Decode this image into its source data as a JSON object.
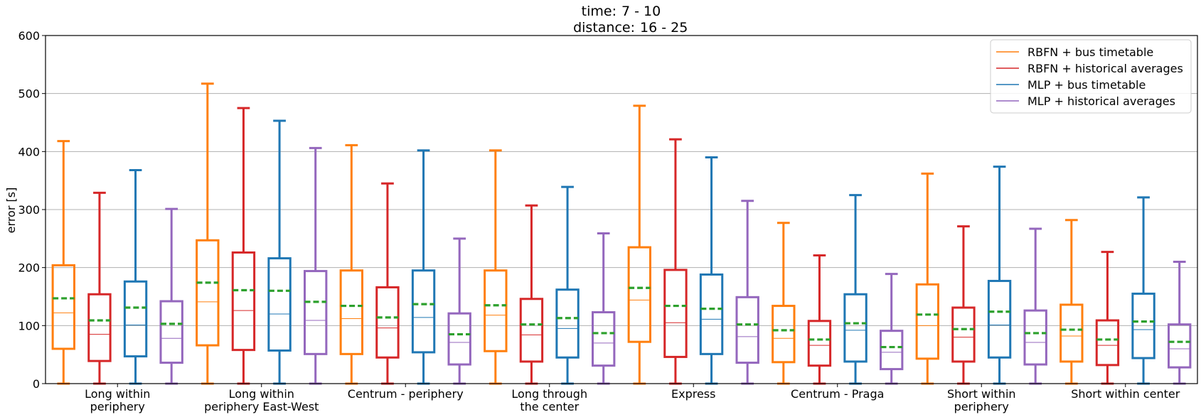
{
  "chart_data": {
    "type": "box",
    "title_line1_label": "time:",
    "title_line1_value": "7 - 10",
    "title_line2_label": "distance:",
    "title_line2_value": "16 - 25",
    "ylabel": "error [s]",
    "xlabel": "",
    "ylim": [
      0,
      600
    ],
    "yticks": [
      0,
      100,
      200,
      300,
      400,
      500,
      600
    ],
    "grid": "horizontal",
    "legend_position": "top-right",
    "categories": [
      [
        "Long within",
        "periphery"
      ],
      [
        "Long within",
        "periphery East-West"
      ],
      [
        "Centrum - periphery"
      ],
      [
        "Long through",
        "the center"
      ],
      [
        "Express"
      ],
      [
        "Centrum - Praga"
      ],
      [
        "Short within",
        "periphery"
      ],
      [
        "Short within center"
      ]
    ],
    "mean_marker_color": "#2ca02c",
    "series": [
      {
        "name": "RBFN + bus timetable",
        "color": "#ff7f0e",
        "boxes": [
          {
            "whislo": 0,
            "q1": 60,
            "med": 122,
            "mean": 147,
            "q3": 204,
            "whishi": 418
          },
          {
            "whislo": 0,
            "q1": 66,
            "med": 141,
            "mean": 174,
            "q3": 247,
            "whishi": 517
          },
          {
            "whislo": 0,
            "q1": 51,
            "med": 112,
            "mean": 134,
            "q3": 195,
            "whishi": 411
          },
          {
            "whislo": 0,
            "q1": 56,
            "med": 118,
            "mean": 135,
            "q3": 195,
            "whishi": 402
          },
          {
            "whislo": 0,
            "q1": 72,
            "med": 144,
            "mean": 165,
            "q3": 235,
            "whishi": 479
          },
          {
            "whislo": 0,
            "q1": 37,
            "med": 78,
            "mean": 92,
            "q3": 134,
            "whishi": 277
          },
          {
            "whislo": 0,
            "q1": 43,
            "med": 100,
            "mean": 119,
            "q3": 171,
            "whishi": 362
          },
          {
            "whislo": 0,
            "q1": 38,
            "med": 82,
            "mean": 93,
            "q3": 136,
            "whishi": 282
          }
        ]
      },
      {
        "name": "RBFN + historical averages",
        "color": "#d62728",
        "boxes": [
          {
            "whislo": 0,
            "q1": 39,
            "med": 85,
            "mean": 109,
            "q3": 154,
            "whishi": 329
          },
          {
            "whislo": 0,
            "q1": 58,
            "med": 126,
            "mean": 161,
            "q3": 226,
            "whishi": 475
          },
          {
            "whislo": 0,
            "q1": 45,
            "med": 96,
            "mean": 114,
            "q3": 166,
            "whishi": 345
          },
          {
            "whislo": 0,
            "q1": 38,
            "med": 84,
            "mean": 102,
            "q3": 146,
            "whishi": 307
          },
          {
            "whislo": 0,
            "q1": 46,
            "med": 105,
            "mean": 134,
            "q3": 196,
            "whishi": 421
          },
          {
            "whislo": 0,
            "q1": 31,
            "med": 66,
            "mean": 76,
            "q3": 108,
            "whishi": 221
          },
          {
            "whislo": 0,
            "q1": 38,
            "med": 80,
            "mean": 94,
            "q3": 131,
            "whishi": 271
          },
          {
            "whislo": 0,
            "q1": 32,
            "med": 66,
            "mean": 76,
            "q3": 109,
            "whishi": 227
          }
        ]
      },
      {
        "name": "MLP + bus timetable",
        "color": "#1f77b4",
        "boxes": [
          {
            "whislo": 0,
            "q1": 47,
            "med": 101,
            "mean": 131,
            "q3": 176,
            "whishi": 368
          },
          {
            "whislo": 0,
            "q1": 57,
            "med": 120,
            "mean": 160,
            "q3": 216,
            "whishi": 453
          },
          {
            "whislo": 0,
            "q1": 54,
            "med": 114,
            "mean": 137,
            "q3": 195,
            "whishi": 402
          },
          {
            "whislo": 0,
            "q1": 45,
            "med": 95,
            "mean": 113,
            "q3": 162,
            "whishi": 339
          },
          {
            "whislo": 0,
            "q1": 51,
            "med": 111,
            "mean": 129,
            "q3": 188,
            "whishi": 390
          },
          {
            "whislo": 0,
            "q1": 38,
            "med": 92,
            "mean": 104,
            "q3": 154,
            "whishi": 325
          },
          {
            "whislo": 0,
            "q1": 45,
            "med": 101,
            "mean": 124,
            "q3": 177,
            "whishi": 374
          },
          {
            "whislo": 0,
            "q1": 44,
            "med": 93,
            "mean": 107,
            "q3": 155,
            "whishi": 321
          }
        ]
      },
      {
        "name": "MLP + historical averages",
        "color": "#9467bd",
        "boxes": [
          {
            "whislo": 0,
            "q1": 36,
            "med": 78,
            "mean": 103,
            "q3": 142,
            "whishi": 301
          },
          {
            "whislo": 0,
            "q1": 51,
            "med": 109,
            "mean": 141,
            "q3": 194,
            "whishi": 406
          },
          {
            "whislo": 0,
            "q1": 33,
            "med": 71,
            "mean": 85,
            "q3": 121,
            "whishi": 250
          },
          {
            "whislo": 0,
            "q1": 31,
            "med": 70,
            "mean": 87,
            "q3": 123,
            "whishi": 259
          },
          {
            "whislo": 0,
            "q1": 36,
            "med": 81,
            "mean": 102,
            "q3": 149,
            "whishi": 315
          },
          {
            "whislo": 0,
            "q1": 25,
            "med": 54,
            "mean": 63,
            "q3": 91,
            "whishi": 189
          },
          {
            "whislo": 0,
            "q1": 33,
            "med": 71,
            "mean": 87,
            "q3": 126,
            "whishi": 267
          },
          {
            "whislo": 0,
            "q1": 28,
            "med": 60,
            "mean": 72,
            "q3": 102,
            "whishi": 210
          }
        ]
      }
    ]
  }
}
